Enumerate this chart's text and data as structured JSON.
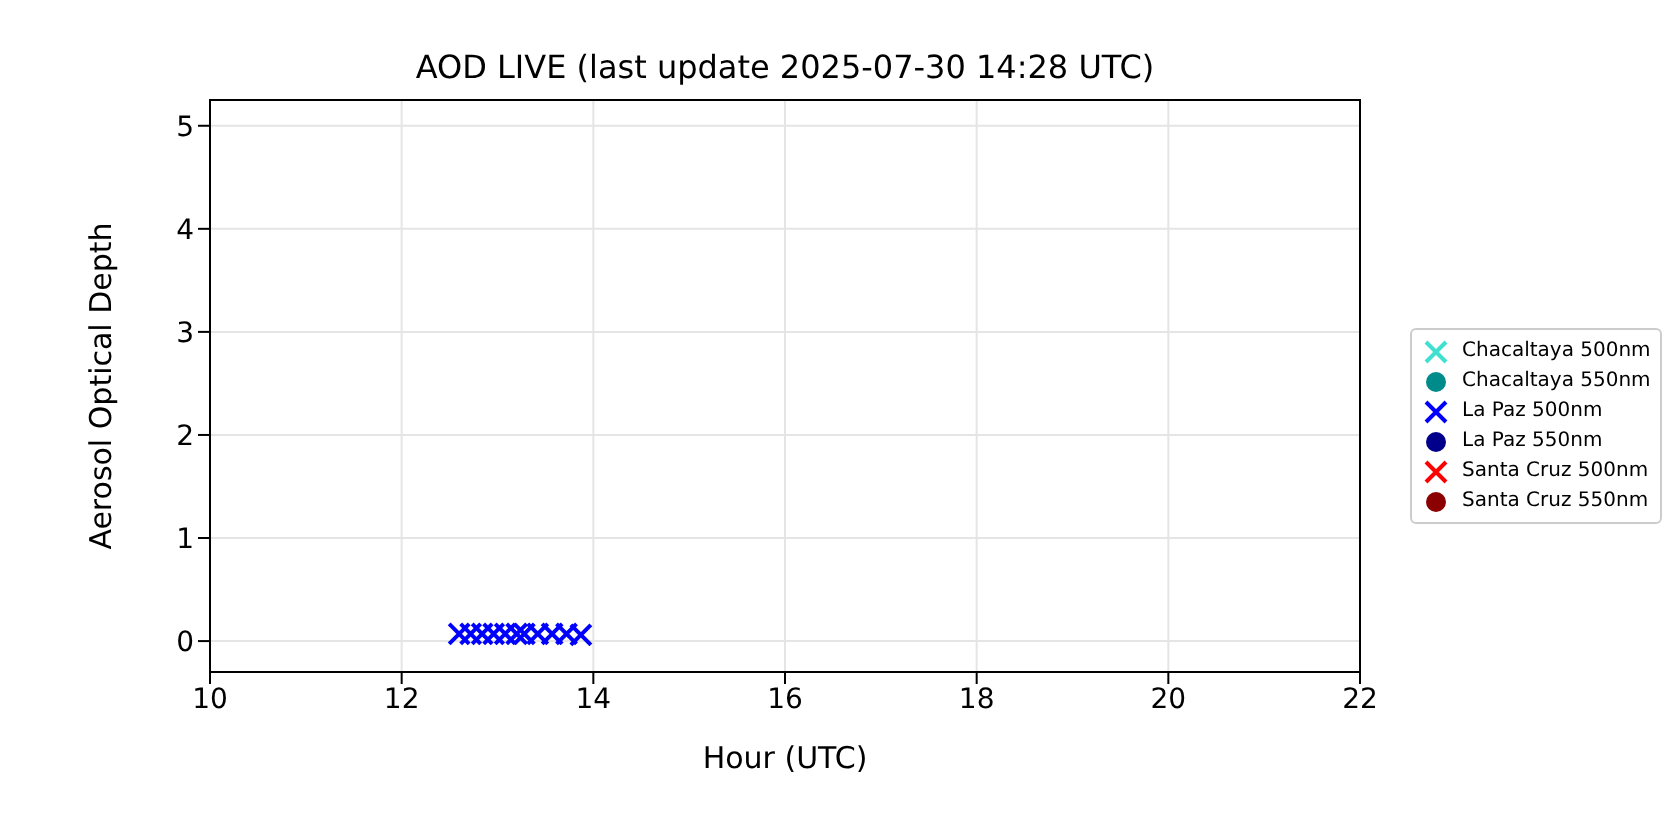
{
  "chart_data": {
    "type": "scatter",
    "title": "AOD LIVE (last update 2025-07-30 14:28 UTC)",
    "xlabel": "Hour (UTC)",
    "ylabel": "Aerosol Optical Depth",
    "xlim": [
      10,
      22
    ],
    "xticks": [
      10,
      12,
      14,
      16,
      18,
      20,
      22
    ],
    "ylim": [
      -0.3,
      5.25
    ],
    "yticks": [
      0,
      1,
      2,
      3,
      4,
      5
    ],
    "grid": true,
    "legend": "right",
    "series": [
      {
        "name": "Chacaltaya 500nm",
        "color": "#40e0d0",
        "marker": "cross"
      },
      {
        "name": "Chacaltaya 550nm",
        "color": "#008b8b",
        "marker": "circle"
      },
      {
        "name": "La Paz 500nm",
        "color": "#0000ff",
        "marker": "cross",
        "x": [
          12.6,
          12.72,
          12.84,
          12.96,
          13.08,
          13.2,
          13.28,
          13.42,
          13.57,
          13.72,
          13.87
        ],
        "values": [
          0.07,
          0.07,
          0.07,
          0.07,
          0.07,
          0.07,
          0.07,
          0.07,
          0.07,
          0.07,
          0.06
        ]
      },
      {
        "name": "La Paz 550nm",
        "color": "#00008b",
        "marker": "circle"
      },
      {
        "name": "Santa Cruz 500nm",
        "color": "#ff0000",
        "marker": "cross"
      },
      {
        "name": "Santa Cruz 550nm",
        "color": "#8b0000",
        "marker": "circle"
      }
    ]
  }
}
